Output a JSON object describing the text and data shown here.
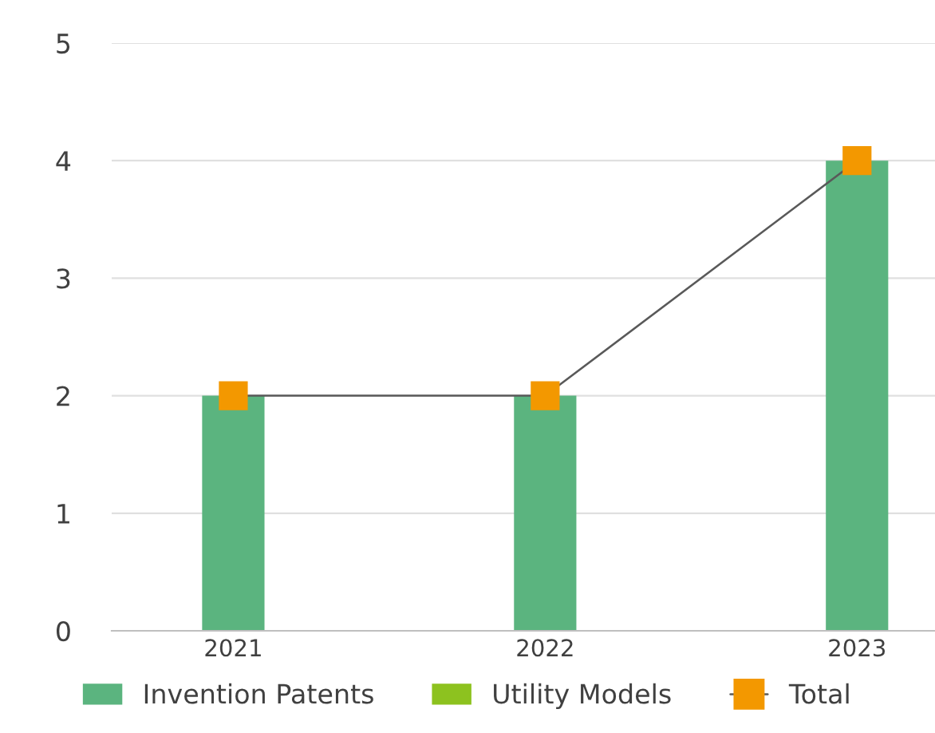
{
  "chart_data": {
    "type": "bar",
    "categories": [
      "2021",
      "2022",
      "2023"
    ],
    "stacked": true,
    "series": [
      {
        "name": "Invention Patents",
        "color": "#5bb47f",
        "values": [
          2,
          2,
          4
        ]
      },
      {
        "name": "Utility Models",
        "color": "#8dc21f",
        "values": [
          0,
          0,
          0
        ]
      },
      {
        "name": "Total",
        "type": "line",
        "color": "#595959",
        "colors": [
          "#f39800",
          "#f39800",
          "#f39800"
        ],
        "values": [
          2,
          2,
          4
        ]
      }
    ],
    "ylim": [
      0,
      5
    ],
    "yticks": [
      0,
      1,
      2,
      3,
      4,
      5
    ],
    "grid": "y",
    "legend": "bottom",
    "marker": "square",
    "line_style": "solid"
  }
}
